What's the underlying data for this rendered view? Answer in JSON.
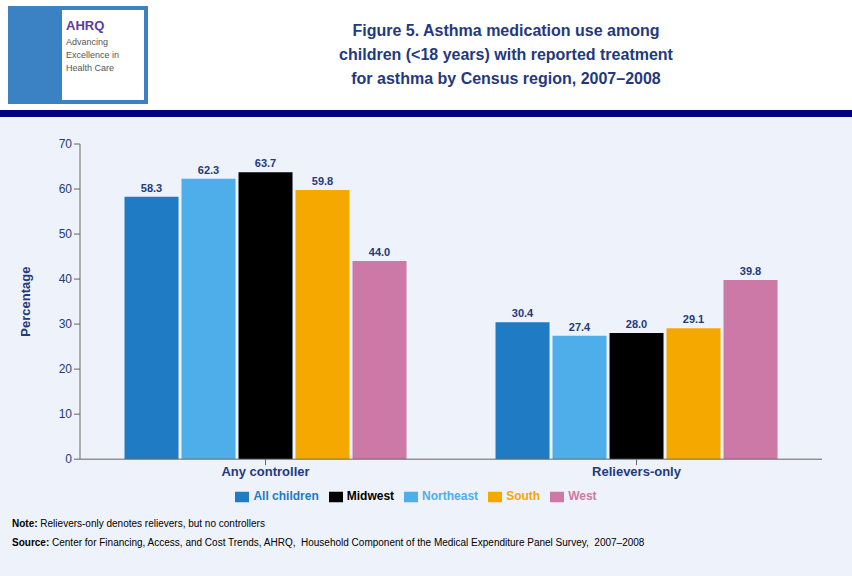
{
  "chart_data": {
    "type": "bar",
    "title": "Figure 5. Asthma medication use among\nchildren (<18 years) with reported treatment\nfor asthma by Census region, 2007–2008",
    "y_label": "Percentage",
    "categories": [
      "Any controller",
      "Relievers-only"
    ],
    "series": [
      {
        "name": "All children",
        "color": "#1E7BC4",
        "values": [
          58.3,
          30.4
        ],
        "value_labels": [
          "58.3",
          "30.4"
        ]
      },
      {
        "name": "Northeast",
        "color": "#4DAEEA",
        "values": [
          62.3,
          27.4
        ],
        "value_labels": [
          "62.3",
          "27.4"
        ]
      },
      {
        "name": "Midwest",
        "color": "#000000",
        "values": [
          63.7,
          28.0
        ],
        "value_labels": [
          "63.7",
          "28.0"
        ]
      },
      {
        "name": "South",
        "color": "#F5A800",
        "values": [
          59.8,
          29.1
        ],
        "value_labels": [
          "59.8",
          "29.1"
        ]
      },
      {
        "name": "West",
        "color": "#CC79A7",
        "values": [
          44.0,
          39.8
        ],
        "value_labels": [
          "44.0",
          "39.8"
        ]
      }
    ],
    "ylim": [
      0,
      70
    ],
    "yticks": [
      0,
      10,
      20,
      30,
      40,
      50,
      60,
      70
    ],
    "grid": false,
    "legend": "bottom",
    "data_labels": true,
    "annotations": [
      "AHRQ",
      "Advancing",
      "Excellence in",
      "Health Care",
      "Note: Relievers-only denotes relievers, but no controllers",
      "Source: Center for Financing, Access, and Cost Trends, AHRQ,  Household Component of the Medical Expenditure Panel Survey,  2007–2008"
    ]
  }
}
